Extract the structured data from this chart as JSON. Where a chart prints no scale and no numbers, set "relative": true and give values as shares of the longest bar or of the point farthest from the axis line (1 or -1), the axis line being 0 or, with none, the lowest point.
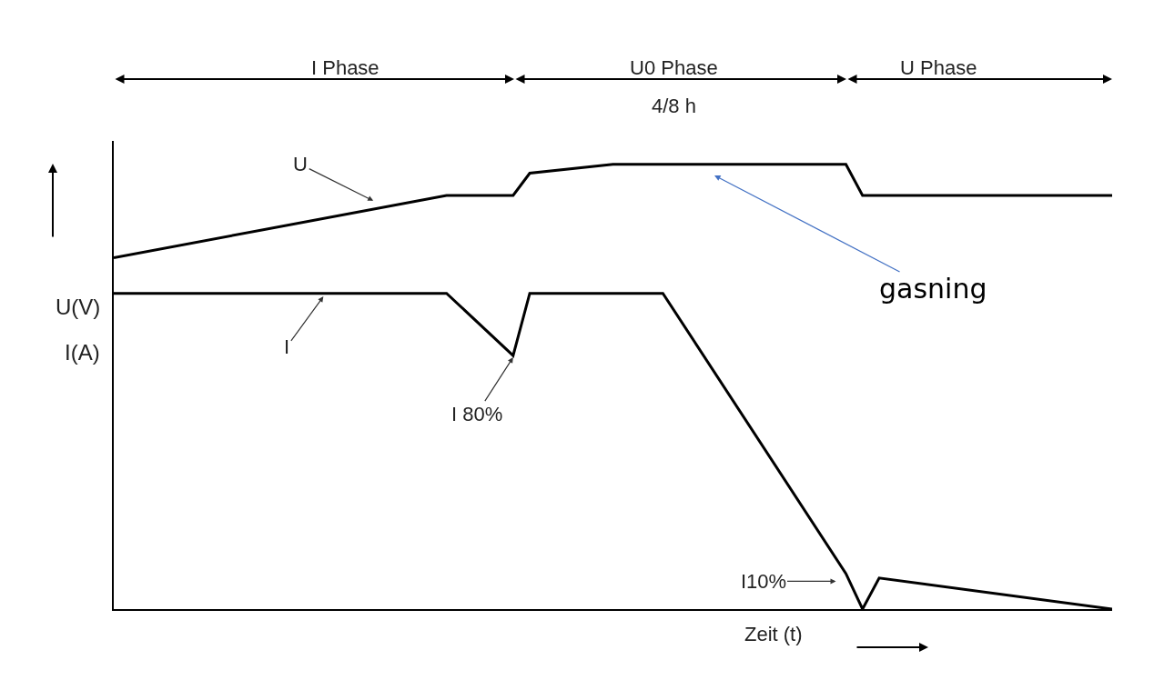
{
  "chart_data": {
    "type": "line",
    "relative": true,
    "xlabel": "Zeit (t)",
    "ylabel": "U(V)\nI(A)",
    "categories": [
      null,
      null,
      null,
      null,
      null,
      null,
      null,
      null,
      null,
      null,
      null,
      null,
      null,
      null,
      null,
      null,
      null,
      null,
      null,
      null,
      null,
      null,
      null,
      null,
      null,
      null,
      null,
      null,
      null,
      null,
      null,
      null,
      null,
      null,
      null,
      null,
      null,
      null,
      null,
      null,
      null,
      null,
      null,
      null,
      null,
      null,
      null,
      null,
      null,
      null,
      null,
      null,
      null,
      null,
      null,
      null,
      null,
      null,
      null,
      null,
      null
    ],
    "series": [
      {
        "name": "U",
        "color": "#000000",
        "values": [
          0.79,
          null,
          null,
          null,
          null,
          null,
          null,
          null,
          null,
          null,
          null,
          null,
          null,
          null,
          null,
          null,
          null,
          null,
          null,
          null,
          0.93,
          null,
          null,
          null,
          0.93,
          0.98,
          null,
          null,
          null,
          null,
          1,
          null,
          null,
          null,
          null,
          null,
          null,
          null,
          null,
          null,
          null,
          null,
          null,
          null,
          1,
          0.93,
          null,
          null,
          null,
          null,
          null,
          null,
          null,
          null,
          null,
          null,
          null,
          null,
          null,
          null,
          0.93
        ]
      },
      {
        "name": "I",
        "color": "#000000",
        "values": [
          0.71,
          null,
          null,
          null,
          null,
          null,
          null,
          null,
          null,
          null,
          null,
          null,
          null,
          null,
          null,
          null,
          null,
          null,
          null,
          null,
          0.71,
          null,
          null,
          null,
          0.57,
          0.71,
          null,
          null,
          null,
          null,
          null,
          null,
          null,
          0.71,
          null,
          null,
          null,
          null,
          null,
          null,
          null,
          null,
          null,
          null,
          0.08,
          0,
          0.07,
          null,
          null,
          null,
          null,
          null,
          null,
          null,
          null,
          null,
          null,
          null,
          null,
          null,
          0
        ]
      }
    ],
    "annotations": [
      "I Phase",
      "U0 Phase",
      "4/8 h",
      "U Phase",
      "I 80%",
      "I10%",
      "gasning"
    ]
  }
}
